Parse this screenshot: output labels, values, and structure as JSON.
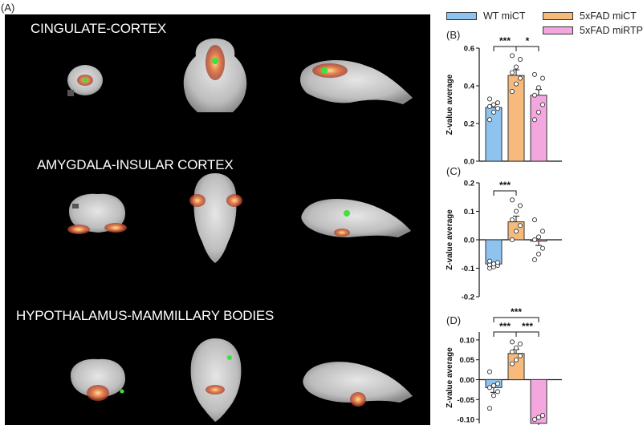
{
  "panel_label_A": "(A)",
  "panel_label_B": "(B)",
  "panel_label_C": "(C)",
  "panel_label_D": "(D)",
  "regions": [
    {
      "title": "CINGULATE-CORTEX"
    },
    {
      "title": "AMYGDALA-INSULAR CORTEX"
    },
    {
      "title": "HYPOTHALAMUS-MAMMILLARY BODIES"
    }
  ],
  "legend": {
    "placement": "top-right",
    "items": [
      {
        "label": "WT miCT",
        "color": "#8ec3ef"
      },
      {
        "label": "5xFAD miCT",
        "color": "#f6bb7c"
      },
      {
        "label": "5xFAD miRTP801",
        "color": "#f4a6df"
      }
    ]
  },
  "chart_data": [
    {
      "type": "bar",
      "panel": "(B)",
      "categories": [
        "WT miCT",
        "5xFAD miCT",
        "5xFAD miRTP801"
      ],
      "values": [
        0.285,
        0.455,
        0.35
      ],
      "errors": [
        0.015,
        0.03,
        0.03
      ],
      "points": [
        [
          0.22,
          0.26,
          0.28,
          0.29,
          0.3,
          0.31,
          0.33
        ],
        [
          0.37,
          0.41,
          0.44,
          0.47,
          0.5,
          0.54,
          0.56
        ],
        [
          0.22,
          0.26,
          0.3,
          0.35,
          0.39,
          0.44,
          0.46
        ]
      ],
      "title": "",
      "ylabel": "Z-value average",
      "ylim": [
        0,
        0.6
      ],
      "yticks": [
        "0.0",
        "0.2",
        "0.4",
        "0.6"
      ],
      "significance": [
        {
          "from": 0,
          "to": 1,
          "label": "***"
        },
        {
          "from": 1,
          "to": 2,
          "label": "*"
        }
      ]
    },
    {
      "type": "bar",
      "panel": "(C)",
      "categories": [
        "WT miCT",
        "5xFAD miCT",
        "5xFAD miRTP801"
      ],
      "values": [
        -0.085,
        0.063,
        -0.005
      ],
      "errors": [
        0.006,
        0.02,
        0.015
      ],
      "points": [
        [
          -0.1,
          -0.095,
          -0.09,
          -0.088,
          -0.085,
          -0.08,
          -0.075
        ],
        [
          0.0,
          0.03,
          0.05,
          0.07,
          0.1,
          0.12,
          0.14
        ],
        [
          -0.07,
          -0.05,
          -0.03,
          0.0,
          0.01,
          0.03,
          0.07
        ]
      ],
      "title": "",
      "ylabel": "Z-value average",
      "ylim": [
        -0.2,
        0.2
      ],
      "yticks": [
        "-0.2",
        "-0.1",
        "0.0",
        "0.1",
        "0.2"
      ],
      "significance": [
        {
          "from": 0,
          "to": 1,
          "label": "***"
        }
      ]
    },
    {
      "type": "bar",
      "panel": "(D)",
      "categories": [
        "WT miCT",
        "5xFAD miCT",
        "5xFAD miRTP801"
      ],
      "values": [
        -0.02,
        0.066,
        -0.11
      ],
      "errors": [
        0.012,
        0.01,
        0.01
      ],
      "points": [
        [
          -0.072,
          -0.04,
          -0.03,
          -0.02,
          -0.015,
          -0.01,
          0.02
        ],
        [
          0.04,
          0.05,
          0.06,
          0.07,
          0.08,
          0.09,
          0.095
        ],
        [
          -0.1,
          -0.095,
          -0.09
        ]
      ],
      "title": "",
      "ylabel": "Z-value average",
      "ylim": [
        -0.11,
        0.12
      ],
      "yticks": [
        "-0.10",
        "-0.05",
        "0.00",
        "0.05",
        "0.10"
      ],
      "significance": [
        {
          "from": 0,
          "to": 1,
          "label": "***"
        },
        {
          "from": 1,
          "to": 2,
          "label": "***"
        },
        {
          "from": 0,
          "to": 2,
          "label": "***"
        }
      ]
    }
  ]
}
